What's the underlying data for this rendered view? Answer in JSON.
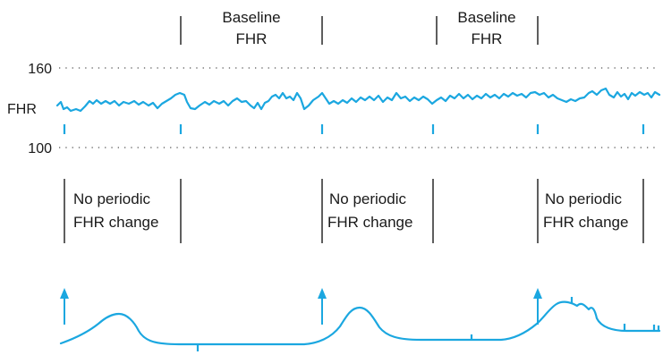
{
  "colors": {
    "trace": "#1ba7e0",
    "text": "#1a1a1a",
    "grid": "#555555"
  },
  "axis": {
    "label_top": "160",
    "label_mid": "FHR",
    "label_bottom": "100"
  },
  "baseline_labels": [
    {
      "line1": "Baseline",
      "line2": "FHR"
    },
    {
      "line1": "Baseline",
      "line2": "FHR"
    }
  ],
  "no_change_labels": [
    {
      "line1": "No periodic",
      "line2": "FHR change"
    },
    {
      "line1": "No periodic",
      "line2": "FHR change"
    },
    {
      "line1": "No periodic",
      "line2": "FHR change"
    }
  ]
}
